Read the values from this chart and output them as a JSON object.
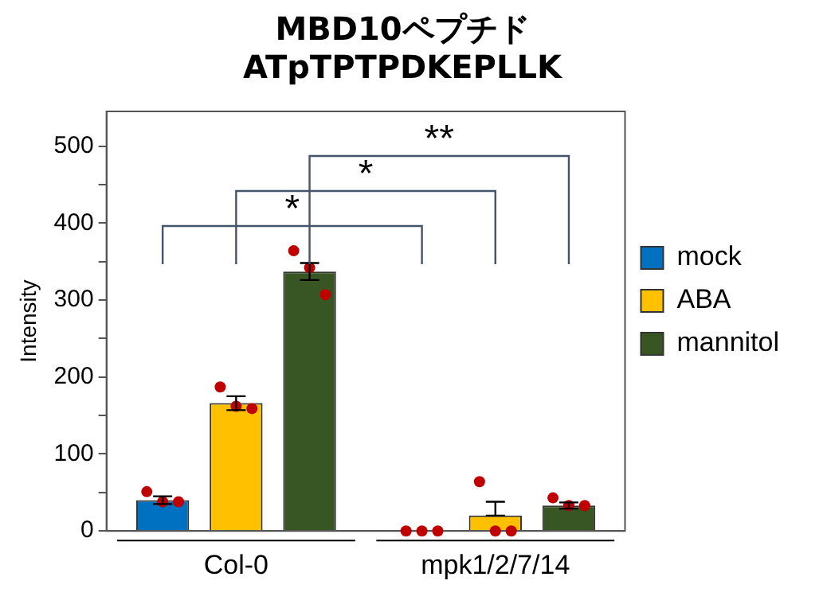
{
  "chart_data": {
    "type": "bar",
    "title": "MBD10ペプチド\nATpTPTPDKEPLLK",
    "ylabel": "Intensity",
    "categories": [
      "Col-0",
      "mpk1/2/7/14"
    ],
    "series": [
      {
        "name": "mock",
        "color": "#0070c0",
        "values": [
          40,
          0
        ],
        "errors": [
          5,
          null
        ]
      },
      {
        "name": "ABA",
        "color": "#ffc000",
        "values": [
          166,
          20
        ],
        "errors": [
          9,
          [
            20,
            38
          ]
        ]
      },
      {
        "name": "mannitol",
        "color": "#375623",
        "values": [
          337,
          33
        ],
        "errors": [
          11,
          4
        ]
      },
      {
        "type": "scatter",
        "color": "#c00000",
        "x": [
          "Col-0",
          "Col-0",
          "Col-0",
          "mpk1/2/7/14",
          "mpk1/2/7/14",
          "mpk1/2/7/14"
        ],
        "values": [
          51,
          38,
          38,
          0,
          0,
          0
        ]
      },
      {
        "type": "scatter",
        "color": "#c00000",
        "x": [
          "Col-0",
          "Col-0",
          "Col-0",
          "mpk1/2/7/14",
          "mpk1/2/7/14",
          "mpk1/2/7/14"
        ],
        "values": [
          187,
          162,
          159,
          64,
          0,
          0
        ]
      },
      {
        "type": "scatter",
        "color": "#c00000",
        "x": [
          "Col-0",
          "Col-0",
          "Col-0",
          "mpk1/2/7/14",
          "mpk1/2/7/14",
          "mpk1/2/7/14"
        ],
        "values": [
          364,
          342,
          307,
          43,
          33,
          33
        ]
      }
    ],
    "ylim": [
      0,
      545
    ],
    "yticks": [
      0,
      {
        "value": 50,
        "label": null
      },
      100,
      {
        "value": 150,
        "label": null
      },
      200,
      {
        "value": 250,
        "label": null
      },
      300,
      {
        "value": 350,
        "label": null
      },
      400,
      {
        "value": 450,
        "label": null
      },
      500
    ],
    "annotations": [
      "*",
      "*",
      "**"
    ],
    "legend": "right",
    "grid": false,
    "marker": "circle"
  }
}
